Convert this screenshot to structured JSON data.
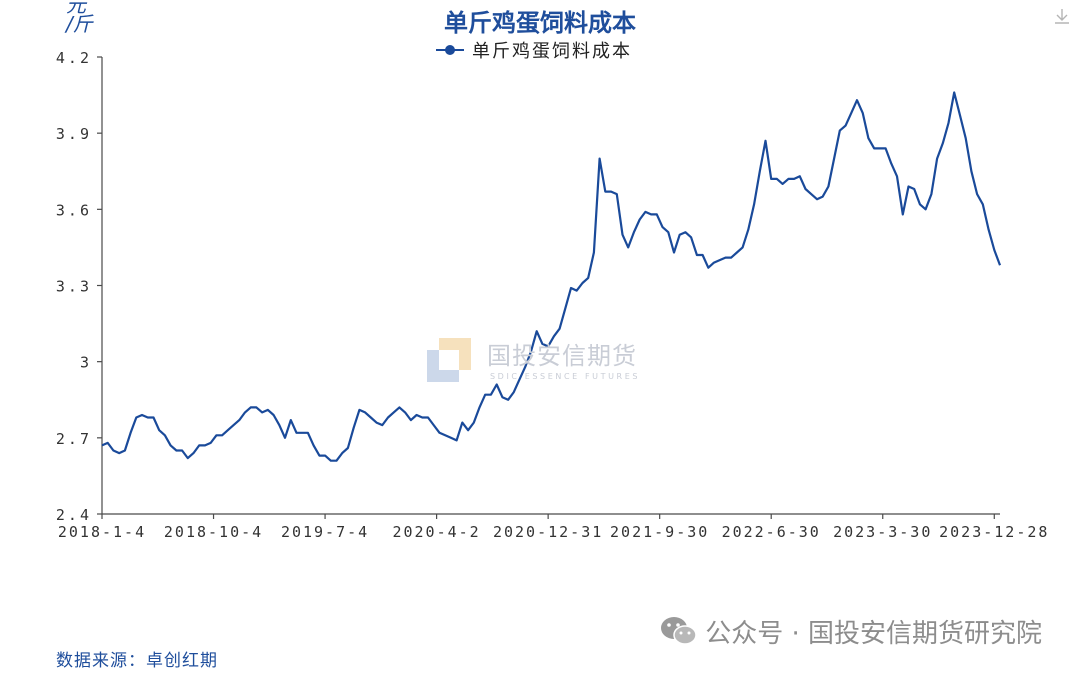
{
  "colors": {
    "line": "#1a4a9a",
    "title": "#1f4e9c",
    "axis": "#4a4a4a"
  },
  "chart": {
    "title": "单斤鸡蛋饲料成本",
    "unit_top": "元",
    "unit_bottom": "/斤",
    "legend": "单斤鸡蛋饲料成本",
    "source": "数据来源：卓创红期",
    "watermark": {
      "name": "国投安信期货",
      "sub": "SDIC ESSENCE FUTURES"
    },
    "footer": "公众号 · 国投安信期货研究院"
  },
  "icons": [
    "download-icon",
    "wechat-icon",
    "logo-icon"
  ],
  "chart_data": {
    "type": "line",
    "title": "单斤鸡蛋饲料成本",
    "ylabel": "元/斤",
    "ylim": [
      2.4,
      4.2
    ],
    "yticks": [
      "2.4",
      "2.7",
      "3",
      "3.3",
      "3.6",
      "3.9",
      "4.2"
    ],
    "xlim": [
      "2018-01-04",
      "2024-01-11"
    ],
    "xticks": [
      "2018-1-4",
      "2018-10-4",
      "2019-7-4",
      "2020-4-2",
      "2020-12-31",
      "2021-9-30",
      "2022-6-30",
      "2023-3-30",
      "2023-12-28"
    ],
    "grid": false,
    "legend_position": "top-center",
    "series": [
      {
        "name": "单斤鸡蛋饲料成本",
        "points": [
          [
            "2018-01-04",
            2.67
          ],
          [
            "2018-01-18",
            2.68
          ],
          [
            "2018-02-01",
            2.65
          ],
          [
            "2018-02-15",
            2.64
          ],
          [
            "2018-03-01",
            2.65
          ],
          [
            "2018-03-15",
            2.72
          ],
          [
            "2018-03-29",
            2.78
          ],
          [
            "2018-04-12",
            2.79
          ],
          [
            "2018-04-26",
            2.78
          ],
          [
            "2018-05-10",
            2.78
          ],
          [
            "2018-05-24",
            2.73
          ],
          [
            "2018-06-07",
            2.71
          ],
          [
            "2018-06-21",
            2.67
          ],
          [
            "2018-07-05",
            2.65
          ],
          [
            "2018-07-19",
            2.65
          ],
          [
            "2018-08-02",
            2.62
          ],
          [
            "2018-08-16",
            2.64
          ],
          [
            "2018-08-30",
            2.67
          ],
          [
            "2018-09-13",
            2.67
          ],
          [
            "2018-09-27",
            2.68
          ],
          [
            "2018-10-11",
            2.71
          ],
          [
            "2018-10-25",
            2.71
          ],
          [
            "2018-11-08",
            2.73
          ],
          [
            "2018-11-22",
            2.75
          ],
          [
            "2018-12-06",
            2.77
          ],
          [
            "2018-12-20",
            2.8
          ],
          [
            "2019-01-03",
            2.82
          ],
          [
            "2019-01-17",
            2.82
          ],
          [
            "2019-01-31",
            2.8
          ],
          [
            "2019-02-14",
            2.81
          ],
          [
            "2019-02-28",
            2.79
          ],
          [
            "2019-03-14",
            2.75
          ],
          [
            "2019-03-28",
            2.7
          ],
          [
            "2019-04-11",
            2.77
          ],
          [
            "2019-04-25",
            2.72
          ],
          [
            "2019-05-09",
            2.72
          ],
          [
            "2019-05-23",
            2.72
          ],
          [
            "2019-06-06",
            2.67
          ],
          [
            "2019-06-20",
            2.63
          ],
          [
            "2019-07-04",
            2.63
          ],
          [
            "2019-07-18",
            2.61
          ],
          [
            "2019-08-01",
            2.61
          ],
          [
            "2019-08-15",
            2.64
          ],
          [
            "2019-08-29",
            2.66
          ],
          [
            "2019-09-12",
            2.74
          ],
          [
            "2019-09-26",
            2.81
          ],
          [
            "2019-10-10",
            2.8
          ],
          [
            "2019-10-24",
            2.78
          ],
          [
            "2019-11-07",
            2.76
          ],
          [
            "2019-11-21",
            2.75
          ],
          [
            "2019-12-05",
            2.78
          ],
          [
            "2019-12-19",
            2.8
          ],
          [
            "2020-01-02",
            2.82
          ],
          [
            "2020-01-16",
            2.8
          ],
          [
            "2020-01-30",
            2.77
          ],
          [
            "2020-02-13",
            2.79
          ],
          [
            "2020-02-27",
            2.78
          ],
          [
            "2020-03-12",
            2.78
          ],
          [
            "2020-03-26",
            2.75
          ],
          [
            "2020-04-09",
            2.72
          ],
          [
            "2020-04-23",
            2.71
          ],
          [
            "2020-05-07",
            2.7
          ],
          [
            "2020-05-21",
            2.69
          ],
          [
            "2020-06-04",
            2.76
          ],
          [
            "2020-06-18",
            2.73
          ],
          [
            "2020-07-02",
            2.76
          ],
          [
            "2020-07-16",
            2.82
          ],
          [
            "2020-07-30",
            2.87
          ],
          [
            "2020-08-13",
            2.87
          ],
          [
            "2020-08-27",
            2.91
          ],
          [
            "2020-09-10",
            2.86
          ],
          [
            "2020-09-24",
            2.85
          ],
          [
            "2020-10-08",
            2.88
          ],
          [
            "2020-10-22",
            2.93
          ],
          [
            "2020-11-05",
            2.98
          ],
          [
            "2020-11-19",
            3.04
          ],
          [
            "2020-12-03",
            3.12
          ],
          [
            "2020-12-17",
            3.07
          ],
          [
            "2020-12-31",
            3.06
          ],
          [
            "2021-01-14",
            3.1
          ],
          [
            "2021-01-28",
            3.13
          ],
          [
            "2021-02-11",
            3.21
          ],
          [
            "2021-02-25",
            3.29
          ],
          [
            "2021-03-11",
            3.28
          ],
          [
            "2021-03-25",
            3.31
          ],
          [
            "2021-04-08",
            3.33
          ],
          [
            "2021-04-22",
            3.43
          ],
          [
            "2021-05-06",
            3.8
          ],
          [
            "2021-05-20",
            3.67
          ],
          [
            "2021-06-03",
            3.67
          ],
          [
            "2021-06-17",
            3.66
          ],
          [
            "2021-07-01",
            3.5
          ],
          [
            "2021-07-15",
            3.45
          ],
          [
            "2021-07-29",
            3.51
          ],
          [
            "2021-08-12",
            3.56
          ],
          [
            "2021-08-26",
            3.59
          ],
          [
            "2021-09-09",
            3.58
          ],
          [
            "2021-09-23",
            3.58
          ],
          [
            "2021-10-07",
            3.53
          ],
          [
            "2021-10-21",
            3.51
          ],
          [
            "2021-11-04",
            3.43
          ],
          [
            "2021-11-18",
            3.5
          ],
          [
            "2021-12-02",
            3.51
          ],
          [
            "2021-12-16",
            3.49
          ],
          [
            "2021-12-30",
            3.42
          ],
          [
            "2022-01-13",
            3.42
          ],
          [
            "2022-01-27",
            3.37
          ],
          [
            "2022-02-10",
            3.39
          ],
          [
            "2022-02-24",
            3.4
          ],
          [
            "2022-03-10",
            3.41
          ],
          [
            "2022-03-24",
            3.41
          ],
          [
            "2022-04-07",
            3.43
          ],
          [
            "2022-04-21",
            3.45
          ],
          [
            "2022-05-05",
            3.52
          ],
          [
            "2022-05-19",
            3.62
          ],
          [
            "2022-06-02",
            3.75
          ],
          [
            "2022-06-16",
            3.87
          ],
          [
            "2022-06-30",
            3.72
          ],
          [
            "2022-07-14",
            3.72
          ],
          [
            "2022-07-28",
            3.7
          ],
          [
            "2022-08-11",
            3.72
          ],
          [
            "2022-08-25",
            3.72
          ],
          [
            "2022-09-08",
            3.73
          ],
          [
            "2022-09-22",
            3.68
          ],
          [
            "2022-10-06",
            3.66
          ],
          [
            "2022-10-20",
            3.64
          ],
          [
            "2022-11-03",
            3.65
          ],
          [
            "2022-11-17",
            3.69
          ],
          [
            "2022-12-01",
            3.8
          ],
          [
            "2022-12-15",
            3.91
          ],
          [
            "2022-12-29",
            3.93
          ],
          [
            "2023-01-12",
            3.98
          ],
          [
            "2023-01-26",
            4.03
          ],
          [
            "2023-02-09",
            3.98
          ],
          [
            "2023-02-23",
            3.88
          ],
          [
            "2023-03-09",
            3.84
          ],
          [
            "2023-03-23",
            3.84
          ],
          [
            "2023-04-06",
            3.84
          ],
          [
            "2023-04-20",
            3.78
          ],
          [
            "2023-05-04",
            3.73
          ],
          [
            "2023-05-18",
            3.58
          ],
          [
            "2023-06-01",
            3.69
          ],
          [
            "2023-06-15",
            3.68
          ],
          [
            "2023-06-29",
            3.62
          ],
          [
            "2023-07-13",
            3.6
          ],
          [
            "2023-07-27",
            3.66
          ],
          [
            "2023-08-10",
            3.8
          ],
          [
            "2023-08-24",
            3.86
          ],
          [
            "2023-09-07",
            3.94
          ],
          [
            "2023-09-21",
            4.06
          ],
          [
            "2023-10-05",
            3.97
          ],
          [
            "2023-10-19",
            3.88
          ],
          [
            "2023-11-02",
            3.75
          ],
          [
            "2023-11-16",
            3.66
          ],
          [
            "2023-11-30",
            3.62
          ],
          [
            "2023-12-14",
            3.52
          ],
          [
            "2023-12-28",
            3.44
          ],
          [
            "2024-01-11",
            3.38
          ]
        ]
      }
    ]
  }
}
